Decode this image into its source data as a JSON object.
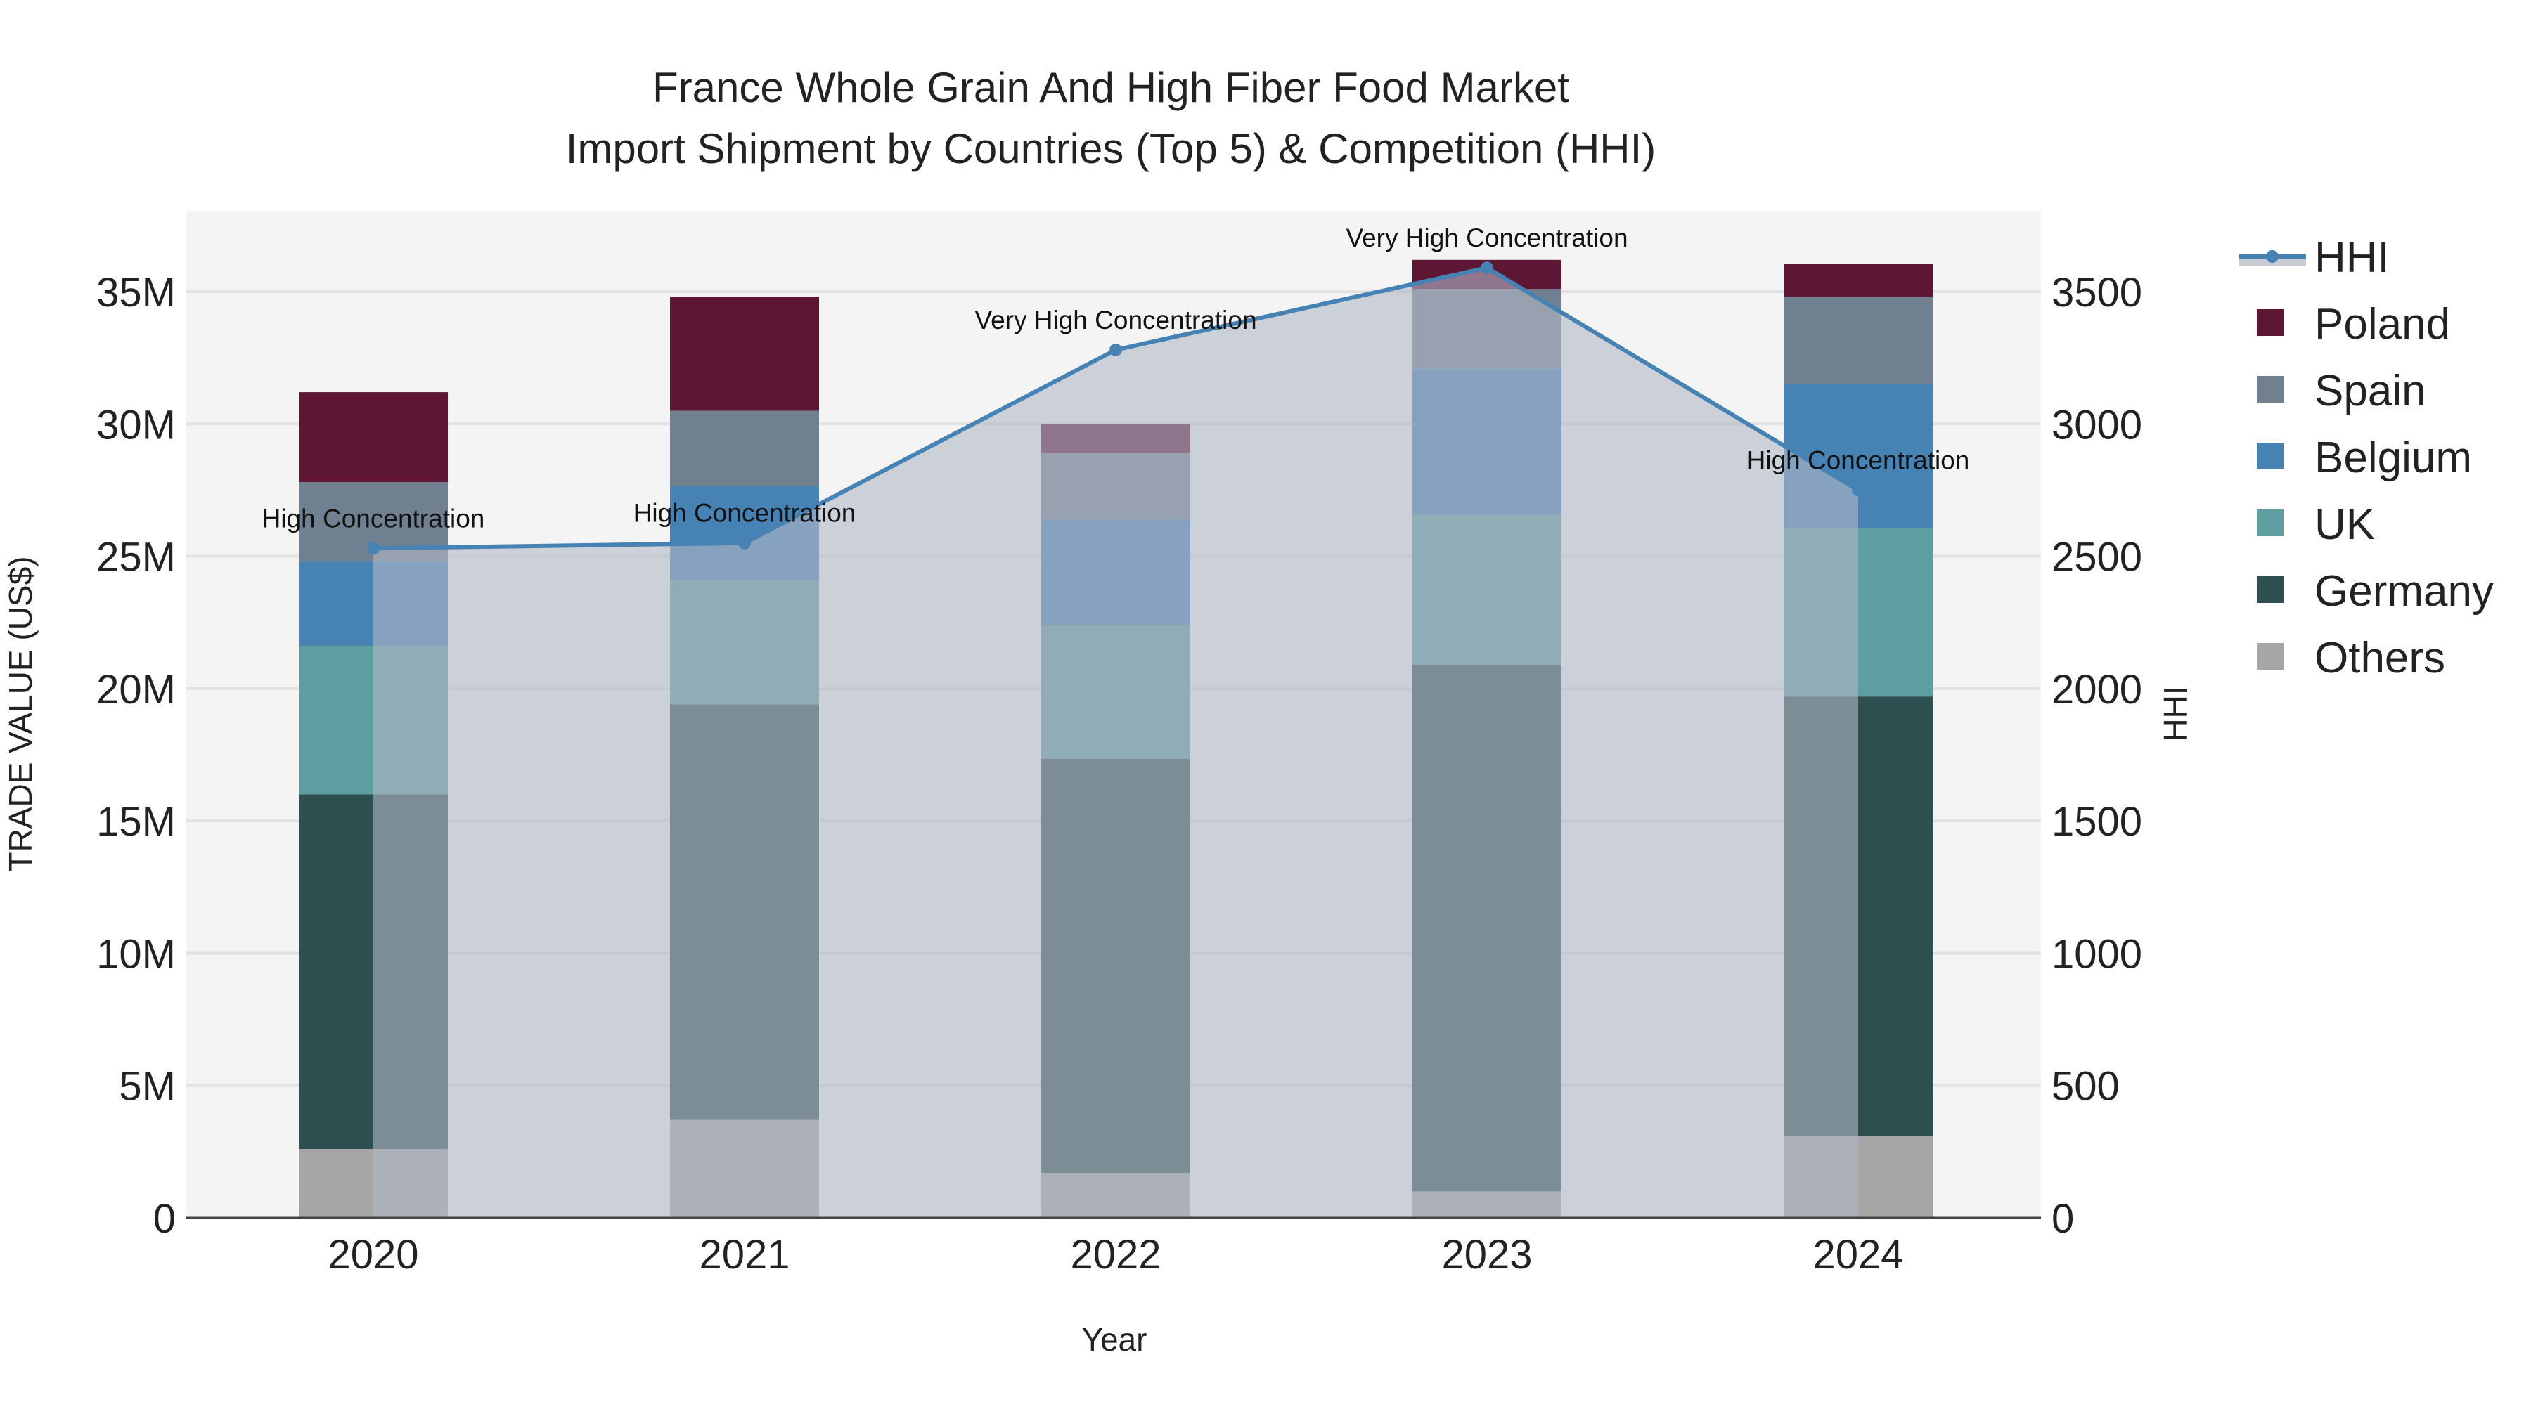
{
  "chart_data": {
    "type": "bar",
    "title_line1": "France Whole Grain And High Fiber Food Market",
    "title_line2": "Import Shipment by Countries (Top 5) & Competition (HHI)",
    "xlabel": "Year",
    "ylabel": "TRADE VALUE (US$)",
    "y2label": "HHI",
    "categories": [
      "2020",
      "2021",
      "2022",
      "2023",
      "2024"
    ],
    "ylim": [
      0,
      38
    ],
    "y_unit": "M",
    "y_ticks": [
      0,
      5,
      10,
      15,
      20,
      25,
      30,
      35
    ],
    "y_tick_labels": [
      "0",
      "5M",
      "10M",
      "15M",
      "20M",
      "25M",
      "30M",
      "35M"
    ],
    "y2lim": [
      0,
      3800
    ],
    "y2_ticks": [
      0,
      500,
      1000,
      1500,
      2000,
      2500,
      3000,
      3500
    ],
    "y2_tick_labels": [
      "0",
      "500",
      "1000",
      "1500",
      "2000",
      "2500",
      "3000",
      "3500"
    ],
    "stacked": true,
    "series": [
      {
        "name": "Others",
        "color": "#a6a6a6",
        "values": [
          2.6,
          3.7,
          1.7,
          1.0,
          3.1
        ]
      },
      {
        "name": "Germany",
        "color": "#2e4f4f",
        "values": [
          13.4,
          15.7,
          15.65,
          19.9,
          16.6
        ]
      },
      {
        "name": "UK",
        "color": "#5f9ea0",
        "values": [
          5.6,
          4.7,
          5.05,
          5.65,
          6.35
        ]
      },
      {
        "name": "Belgium",
        "color": "#4682b4",
        "values": [
          3.2,
          3.55,
          4.0,
          5.55,
          5.45
        ]
      },
      {
        "name": "Spain",
        "color": "#708090",
        "values": [
          3.0,
          2.85,
          2.5,
          3.0,
          3.3
        ]
      },
      {
        "name": "Poland",
        "color": "#5e1635",
        "values": [
          3.4,
          4.3,
          1.1,
          1.1,
          1.25
        ]
      }
    ],
    "line_series": {
      "name": "HHI",
      "axis": "right",
      "color": "#4682b4",
      "fill": "rgba(176,184,198,0.6)",
      "values": [
        2530,
        2550,
        3280,
        3590,
        2750
      ],
      "annotations": [
        "High Concentration",
        "High Concentration",
        "Very High Concentration",
        "Very High Concentration",
        "High Concentration"
      ]
    },
    "legend_order": [
      "HHI",
      "Poland",
      "Spain",
      "Belgium",
      "UK",
      "Germany",
      "Others"
    ],
    "legend_position": "right",
    "grid": true
  }
}
